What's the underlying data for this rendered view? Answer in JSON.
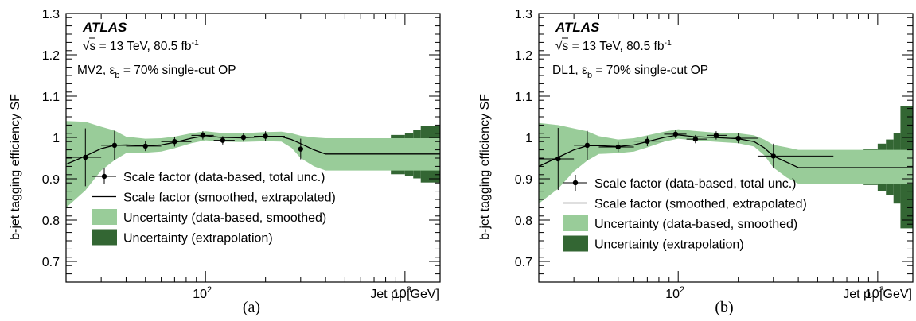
{
  "colors": {
    "smoothed_band": "#99cc99",
    "extrap_band": "#336633",
    "line": "#000000"
  },
  "chart_data": [
    {
      "type": "line",
      "caption": "(a)",
      "ylabel": "b-jet tagging efficiency SF",
      "xlabel_main": "Jet p",
      "xlabel_sub": "T",
      "xlabel_unit": " [GeV]",
      "x_scale": "log",
      "xlim": [
        20,
        1500
      ],
      "ylim": [
        0.65,
        1.3
      ],
      "yticks": [
        0.7,
        0.8,
        0.9,
        1,
        1.1,
        1.2,
        1.3
      ],
      "ytick_labels": [
        "0.7",
        "0.8",
        "0.9",
        "1",
        "1.1",
        "1.2",
        "1.3"
      ],
      "xtick_labels": [
        {
          "x": 100,
          "base": "10",
          "exp": "2"
        },
        {
          "x": 1000,
          "base": "10",
          "exp": "3"
        }
      ],
      "atlas_label": "ATLAS",
      "energy_label": "√s = 13 TeV, 80.5 fb",
      "lumi_exp": "-1",
      "tagger_label": "MV2,  ε",
      "tagger_sub": "b",
      "op_label": " = 70% single-cut OP",
      "legend": [
        {
          "kind": "marker",
          "label": "Scale factor (data-based, total unc.)"
        },
        {
          "kind": "line",
          "label": "Scale factor (smoothed, extrapolated)"
        },
        {
          "kind": "band-light",
          "label": "Uncertainty (data-based, smoothed)"
        },
        {
          "kind": "band-dark",
          "label": "Uncertainty (extrapolation)"
        }
      ],
      "data_points": [
        {
          "x": 25,
          "y": 0.952,
          "xlo": 20,
          "xhi": 30,
          "err": 0.07
        },
        {
          "x": 35,
          "y": 0.981,
          "xlo": 30,
          "xhi": 40,
          "err": 0.035
        },
        {
          "x": 50,
          "y": 0.979,
          "xlo": 40,
          "xhi": 60,
          "err": 0.012
        },
        {
          "x": 70,
          "y": 0.99,
          "xlo": 60,
          "xhi": 85,
          "err": 0.012
        },
        {
          "x": 97,
          "y": 1.005,
          "xlo": 85,
          "xhi": 110,
          "err": 0.01
        },
        {
          "x": 122,
          "y": 0.993,
          "xlo": 110,
          "xhi": 140,
          "err": 0.01
        },
        {
          "x": 155,
          "y": 1.0,
          "xlo": 140,
          "xhi": 175,
          "err": 0.01
        },
        {
          "x": 200,
          "y": 1.003,
          "xlo": 175,
          "xhi": 250,
          "err": 0.012
        },
        {
          "x": 300,
          "y": 0.972,
          "xlo": 250,
          "xhi": 600,
          "err": 0.025
        }
      ],
      "smoothed_line": {
        "x": [
          20,
          25,
          30,
          35,
          40,
          50,
          60,
          70,
          85,
          100,
          120,
          150,
          200,
          240,
          270,
          300,
          350,
          400,
          1500
        ],
        "y": [
          0.935,
          0.955,
          0.973,
          0.981,
          0.982,
          0.98,
          0.982,
          0.988,
          0.998,
          1.004,
          1.0,
          0.999,
          1.002,
          1.002,
          0.995,
          0.985,
          0.97,
          0.96,
          0.96
        ]
      },
      "smoothed_band": {
        "x": [
          20,
          25,
          30,
          35,
          40,
          50,
          60,
          70,
          85,
          100,
          120,
          150,
          200,
          240,
          270,
          300,
          350,
          400,
          1500
        ],
        "lo": [
          0.83,
          0.872,
          0.92,
          0.945,
          0.962,
          0.963,
          0.966,
          0.974,
          0.986,
          0.993,
          0.99,
          0.989,
          0.991,
          0.99,
          0.975,
          0.95,
          0.93,
          0.92,
          0.92
        ],
        "hi": [
          1.04,
          1.038,
          1.026,
          1.017,
          1.002,
          0.997,
          0.998,
          1.002,
          1.01,
          1.015,
          1.011,
          1.01,
          1.013,
          1.014,
          1.01,
          1.004,
          1.0,
          0.998,
          0.998
        ]
      },
      "extrap_bins": [
        {
          "x0": 850,
          "x1": 1000,
          "lo": 0.911,
          "hi": 1.006
        },
        {
          "x0": 1000,
          "x1": 1100,
          "lo": 0.907,
          "hi": 1.011
        },
        {
          "x0": 1100,
          "x1": 1200,
          "lo": 0.901,
          "hi": 1.018
        },
        {
          "x0": 1200,
          "x1": 1500,
          "lo": 0.891,
          "hi": 1.028
        }
      ]
    },
    {
      "type": "line",
      "caption": "(b)",
      "ylabel": "b-jet tagging efficiency SF",
      "xlabel_main": "Jet p",
      "xlabel_sub": "T",
      "xlabel_unit": " [GeV]",
      "x_scale": "log",
      "xlim": [
        20,
        1500
      ],
      "ylim": [
        0.65,
        1.3
      ],
      "yticks": [
        0.7,
        0.8,
        0.9,
        1,
        1.1,
        1.2,
        1.3
      ],
      "ytick_labels": [
        "0.7",
        "0.8",
        "0.9",
        "1",
        "1.1",
        "1.2",
        "1.3"
      ],
      "xtick_labels": [
        {
          "x": 100,
          "base": "10",
          "exp": "2"
        },
        {
          "x": 1000,
          "base": "10",
          "exp": "3"
        }
      ],
      "atlas_label": "ATLAS",
      "energy_label": "√s = 13 TeV, 80.5 fb",
      "lumi_exp": "-1",
      "tagger_label": "DL1,  ε",
      "tagger_sub": "b",
      "op_label": " = 70% single-cut OP",
      "legend": [
        {
          "kind": "marker",
          "label": "Scale factor (data-based, total unc.)"
        },
        {
          "kind": "line",
          "label": "Scale factor (smoothed, extrapolated)"
        },
        {
          "kind": "band-light",
          "label": "Uncertainty (data-based, smoothed)"
        },
        {
          "kind": "band-dark",
          "label": "Uncertainty (extrapolation)"
        }
      ],
      "data_points": [
        {
          "x": 25,
          "y": 0.948,
          "xlo": 20,
          "xhi": 30,
          "err": 0.075
        },
        {
          "x": 35,
          "y": 0.981,
          "xlo": 30,
          "xhi": 40,
          "err": 0.035
        },
        {
          "x": 50,
          "y": 0.977,
          "xlo": 40,
          "xhi": 60,
          "err": 0.012
        },
        {
          "x": 70,
          "y": 0.991,
          "xlo": 60,
          "xhi": 85,
          "err": 0.012
        },
        {
          "x": 97,
          "y": 1.008,
          "xlo": 85,
          "xhi": 110,
          "err": 0.01
        },
        {
          "x": 122,
          "y": 0.996,
          "xlo": 110,
          "xhi": 140,
          "err": 0.01
        },
        {
          "x": 155,
          "y": 1.005,
          "xlo": 140,
          "xhi": 175,
          "err": 0.01
        },
        {
          "x": 200,
          "y": 0.998,
          "xlo": 175,
          "xhi": 250,
          "err": 0.012
        },
        {
          "x": 300,
          "y": 0.955,
          "xlo": 250,
          "xhi": 600,
          "err": 0.03
        }
      ],
      "smoothed_line": {
        "x": [
          20,
          25,
          30,
          35,
          40,
          50,
          60,
          70,
          85,
          100,
          120,
          150,
          200,
          240,
          270,
          300,
          350,
          400,
          1500
        ],
        "y": [
          0.93,
          0.952,
          0.97,
          0.98,
          0.98,
          0.978,
          0.982,
          0.99,
          1.0,
          1.006,
          1.002,
          1.0,
          0.997,
          0.99,
          0.975,
          0.955,
          0.94,
          0.927,
          0.927
        ]
      },
      "smoothed_band": {
        "x": [
          20,
          25,
          30,
          35,
          40,
          50,
          60,
          70,
          85,
          100,
          120,
          150,
          200,
          240,
          270,
          300,
          350,
          400,
          1500
        ],
        "lo": [
          0.84,
          0.876,
          0.918,
          0.944,
          0.96,
          0.962,
          0.966,
          0.976,
          0.99,
          0.997,
          0.993,
          0.99,
          0.986,
          0.978,
          0.957,
          0.927,
          0.903,
          0.888,
          0.888
        ],
        "hi": [
          1.035,
          1.03,
          1.022,
          1.015,
          1.003,
          0.995,
          0.998,
          1.005,
          1.014,
          1.02,
          1.016,
          1.012,
          1.01,
          1.005,
          0.995,
          0.982,
          0.976,
          0.97,
          0.97
        ]
      },
      "extrap_bins": [
        {
          "x0": 850,
          "x1": 1000,
          "lo": 0.885,
          "hi": 0.972
        },
        {
          "x0": 1000,
          "x1": 1100,
          "lo": 0.87,
          "hi": 0.985
        },
        {
          "x0": 1100,
          "x1": 1200,
          "lo": 0.86,
          "hi": 0.995
        },
        {
          "x0": 1200,
          "x1": 1300,
          "lo": 0.84,
          "hi": 1.01
        },
        {
          "x0": 1300,
          "x1": 1500,
          "lo": 0.78,
          "hi": 1.075
        }
      ]
    }
  ]
}
